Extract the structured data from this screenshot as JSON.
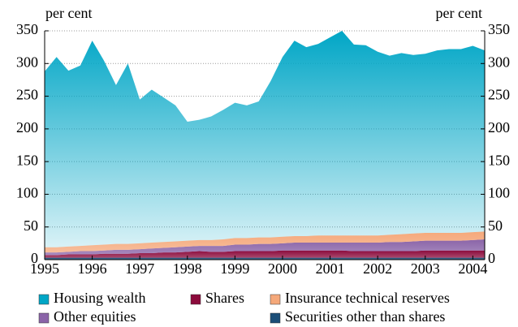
{
  "chart_data": {
    "type": "stacked-area",
    "y_label": "per cent",
    "y2_label": "per cent",
    "x": [
      1995,
      1995.25,
      1995.5,
      1995.75,
      1996,
      1996.25,
      1996.5,
      1996.75,
      1997,
      1997.25,
      1997.5,
      1997.75,
      1998,
      1998.25,
      1998.5,
      1998.75,
      1999,
      1999.25,
      1999.5,
      1999.75,
      2000,
      2000.25,
      2000.5,
      2000.75,
      2001,
      2001.25,
      2001.5,
      2001.75,
      2002,
      2002.25,
      2002.5,
      2002.75,
      2003,
      2003.25,
      2003.5,
      2003.75,
      2004,
      2004.25
    ],
    "xlim": [
      1995,
      2004.25
    ],
    "xticks": [
      1995,
      1996,
      1997,
      1998,
      1999,
      2000,
      2001,
      2002,
      2003,
      2004
    ],
    "ylim": [
      0,
      350
    ],
    "yticks": [
      0,
      50,
      100,
      150,
      200,
      250,
      300,
      350
    ],
    "y2lim": [
      0,
      350
    ],
    "y2ticks": [
      0,
      50,
      100,
      150,
      200,
      250,
      300,
      350
    ],
    "grid": true,
    "series": [
      {
        "name": "Housing wealth",
        "color": "#00a6c6",
        "values": [
          269,
          291,
          269,
          276,
          313,
          281,
          243,
          276,
          220,
          234,
          221,
          208,
          182,
          184,
          189,
          198,
          207,
          203,
          208,
          239,
          275,
          299,
          289,
          293,
          303,
          313,
          292,
          291,
          281,
          274,
          277,
          273,
          274,
          279,
          281,
          281,
          285,
          277
        ]
      },
      {
        "name": "Shares",
        "color": "#8c0b3c",
        "values": [
          4,
          4,
          5,
          5,
          5,
          6,
          6,
          6,
          7,
          7,
          8,
          8,
          9,
          10,
          9,
          9,
          10,
          10,
          10,
          10,
          11,
          11,
          11,
          11,
          11,
          11,
          10,
          10,
          10,
          10,
          10,
          10,
          11,
          11,
          11,
          11,
          11,
          11
        ]
      },
      {
        "name": "Insurance technical reserves",
        "color": "#f5a87a",
        "values": [
          8,
          8,
          8,
          8,
          9,
          9,
          9,
          9,
          9,
          9,
          9,
          9,
          9,
          9,
          9,
          10,
          10,
          10,
          10,
          10,
          10,
          10,
          10,
          11,
          11,
          11,
          11,
          11,
          11,
          11,
          12,
          12,
          12,
          12,
          12,
          12,
          12,
          12
        ]
      },
      {
        "name": "Other equities",
        "color": "#8a64a8",
        "values": [
          4,
          4,
          4,
          5,
          5,
          5,
          6,
          6,
          6,
          7,
          7,
          8,
          8,
          8,
          9,
          9,
          10,
          10,
          11,
          11,
          11,
          12,
          12,
          12,
          12,
          12,
          13,
          13,
          13,
          14,
          14,
          15,
          15,
          15,
          15,
          15,
          16,
          17
        ]
      },
      {
        "name": "Securities other than shares",
        "color": "#1b4e78",
        "values": [
          3,
          3,
          3,
          3,
          3,
          3,
          3,
          3,
          3,
          3,
          3,
          3,
          3,
          3,
          3,
          3,
          3,
          3,
          3,
          3,
          3,
          3,
          3,
          3,
          3,
          3,
          3,
          3,
          3,
          3,
          3,
          3,
          3,
          3,
          3,
          3,
          3,
          3
        ]
      }
    ]
  }
}
